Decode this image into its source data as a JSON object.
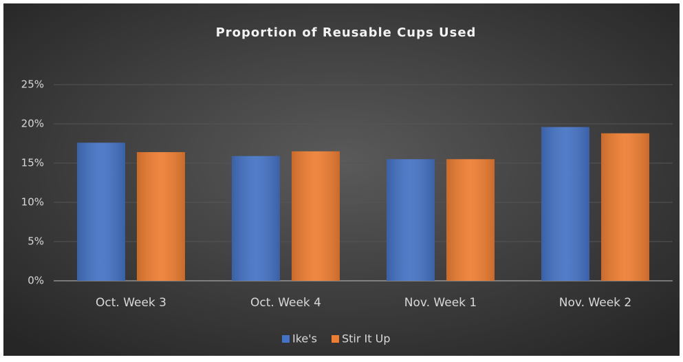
{
  "chart_data": {
    "type": "bar",
    "title": "Proportion of Reusable Cups Used",
    "categories": [
      "Oct. Week 3",
      "Oct. Week 4",
      "Nov. Week 1",
      "Nov. Week 2"
    ],
    "series": [
      {
        "name": "Ike's",
        "color": "#4472c4",
        "values": [
          17.6,
          15.9,
          15.5,
          19.6
        ]
      },
      {
        "name": "Stir It Up",
        "color": "#ed7d31",
        "values": [
          16.4,
          16.5,
          15.5,
          18.8
        ]
      }
    ],
    "ylim": [
      0,
      25
    ],
    "yticks": [
      {
        "value": 0,
        "label": "0%"
      },
      {
        "value": 5,
        "label": "5%"
      },
      {
        "value": 10,
        "label": "10%"
      },
      {
        "value": 15,
        "label": "15%"
      },
      {
        "value": 20,
        "label": "20%"
      },
      {
        "value": 25,
        "label": "25%"
      }
    ],
    "grid": true,
    "legend": "bottom"
  }
}
